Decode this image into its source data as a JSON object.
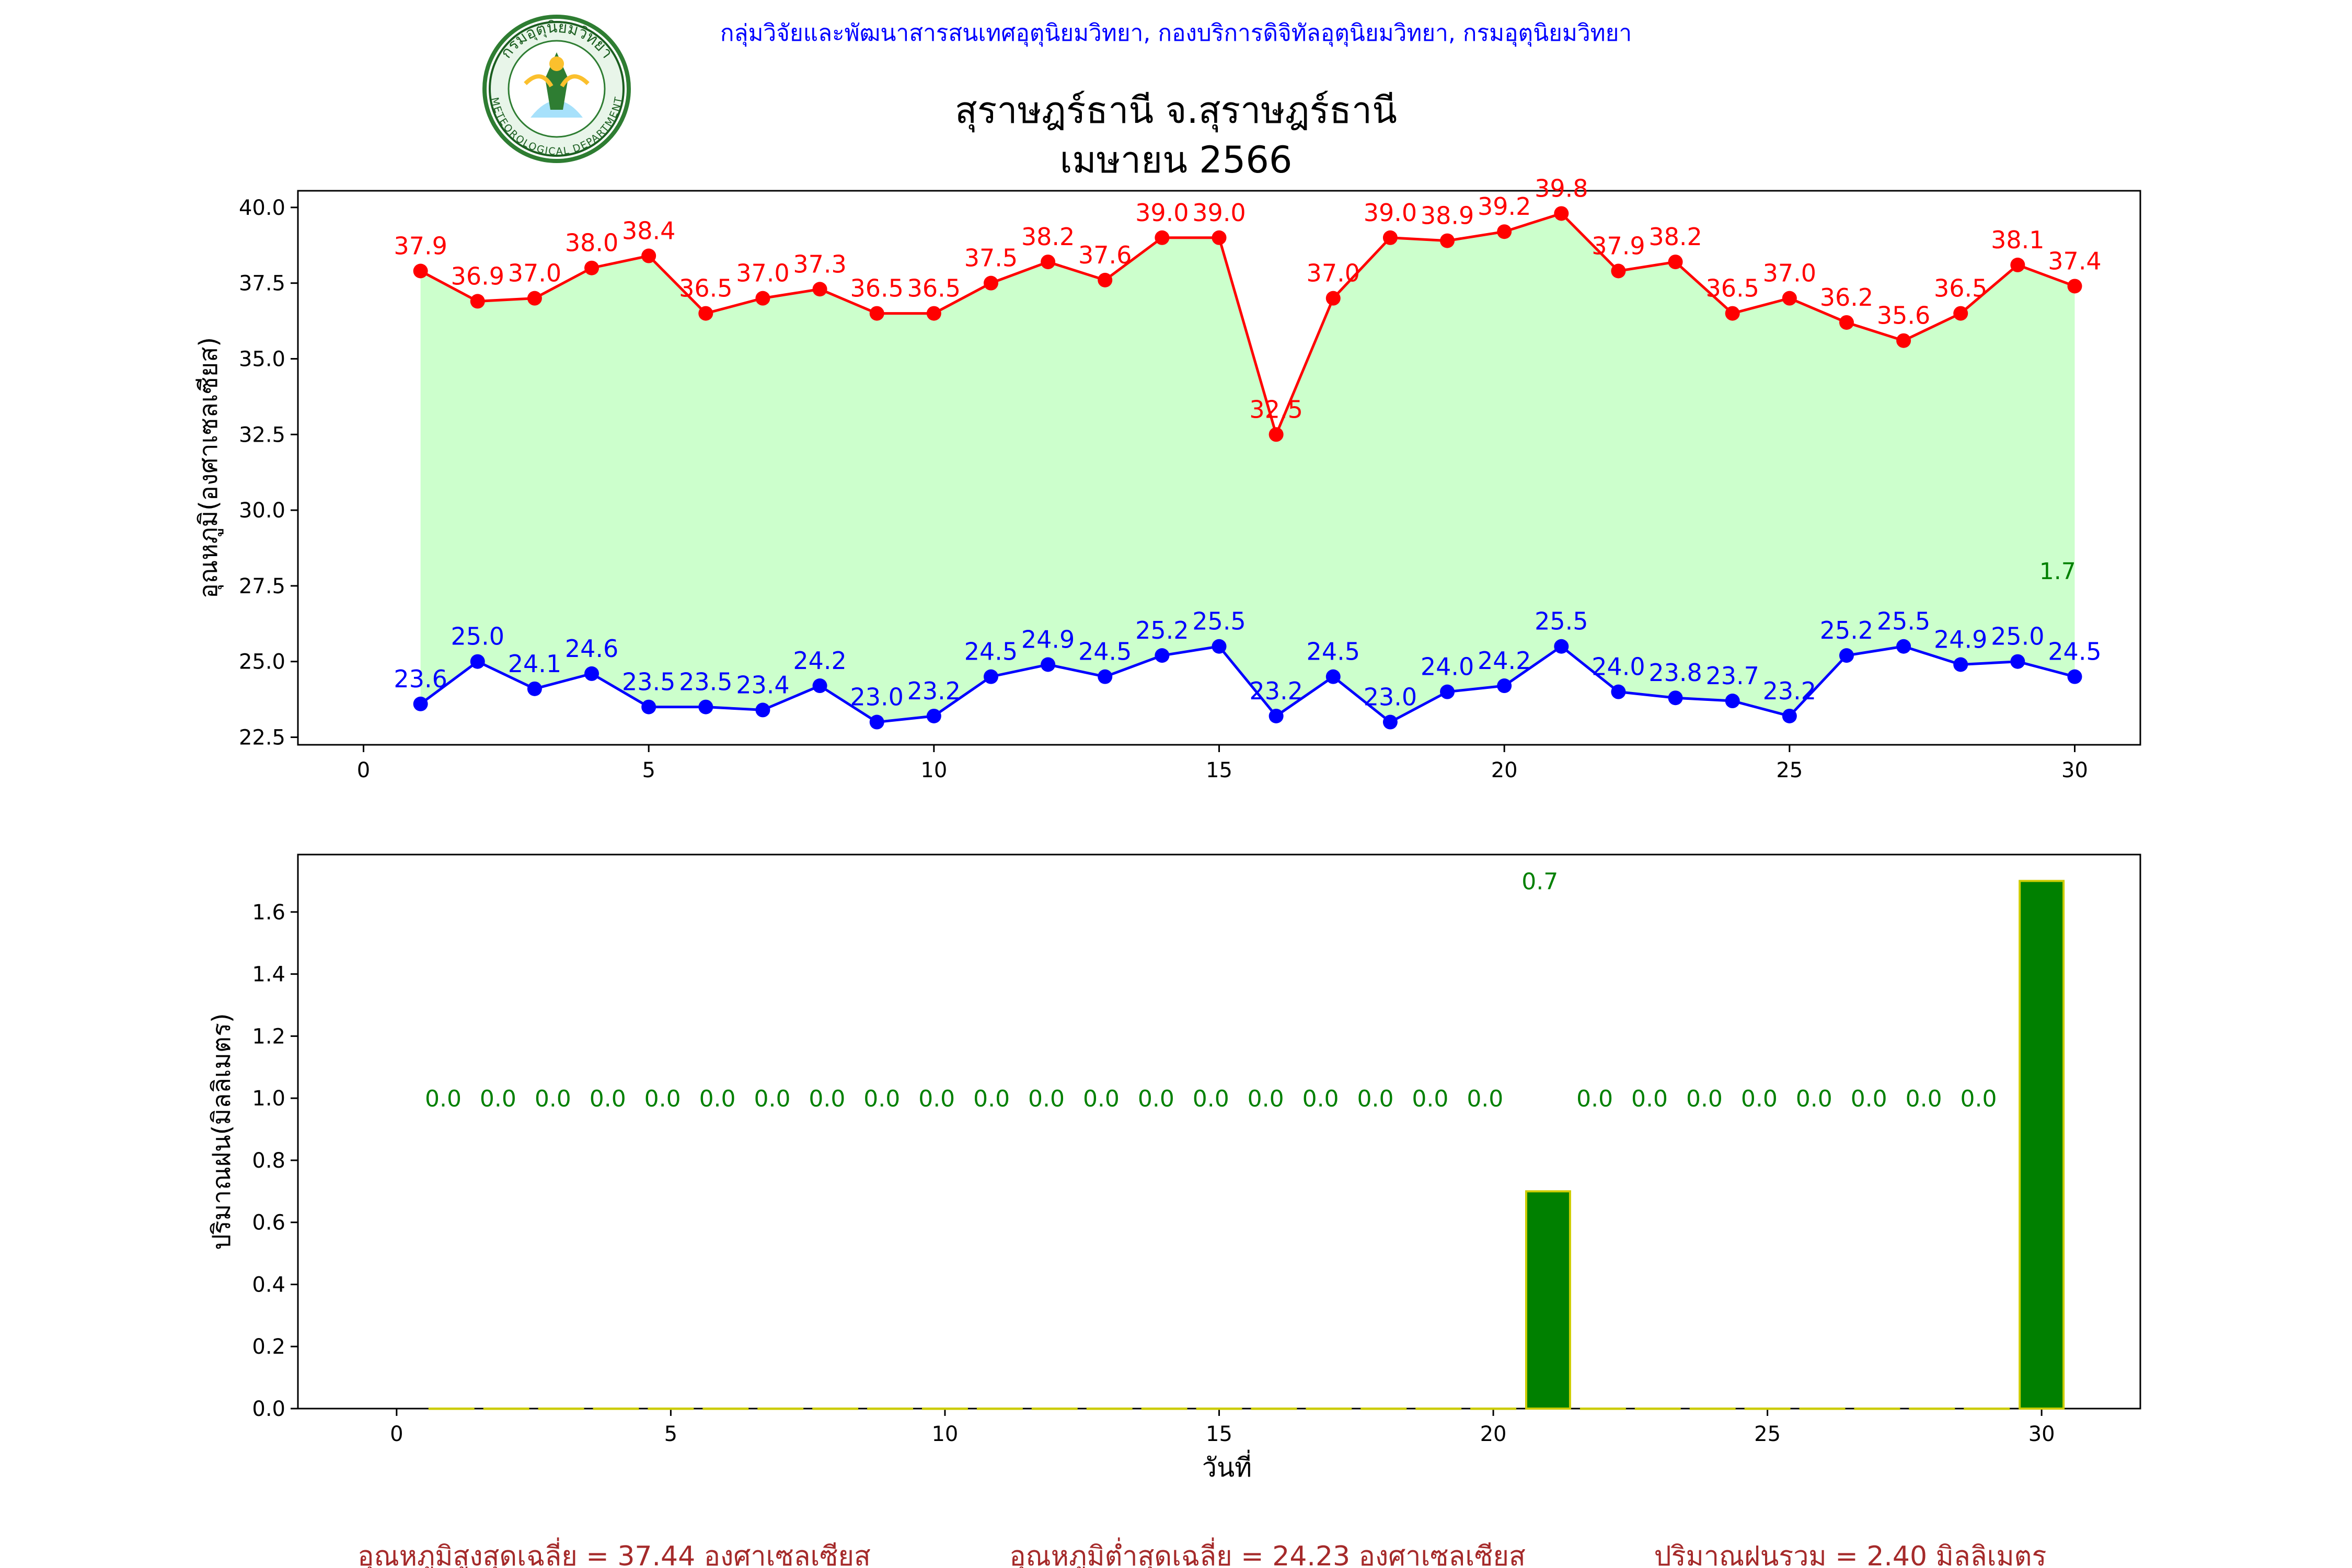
{
  "header": {
    "org_line": "กลุ่มวิจัยและพัฒนาสารสนเทศอุตุนิยมวิทยา, กองบริการดิจิทัลอุตุนิยมวิทยา, กรมอุตุนิยมวิทยา",
    "title": "สุราษฎร์ธานี จ.สุราษฎร์ธานี",
    "subtitle": "เมษายน 2566",
    "logo_top_text": "กรมอุตุนิยมวิทยา",
    "logo_bottom_text": "METEOROLOGICAL DEPARTMENT"
  },
  "colors": {
    "max_temp": "#ff0000",
    "min_temp": "#0000ff",
    "fill": "#ccffcc",
    "rain_bar": "#008000",
    "rain_edge": "#cccc00",
    "rain_label": "#008000",
    "footer": "#a52a2a",
    "org_line": "#0000ff"
  },
  "chart_data": [
    {
      "type": "line",
      "ylabel": "อุณหภูมิ(องศาเซลเซียส)",
      "xlim": [
        -1.15,
        31.15
      ],
      "ylim": [
        22.25,
        40.55
      ],
      "xticks": [
        0,
        5,
        10,
        15,
        20,
        25,
        30
      ],
      "yticks": [
        "22.5",
        "25.0",
        "27.5",
        "30.0",
        "32.5",
        "35.0",
        "37.5",
        "40.0"
      ],
      "x": [
        1,
        2,
        3,
        4,
        5,
        6,
        7,
        8,
        9,
        10,
        11,
        12,
        13,
        14,
        15,
        16,
        17,
        18,
        19,
        20,
        21,
        22,
        23,
        24,
        25,
        26,
        27,
        28,
        29,
        30
      ],
      "series": [
        {
          "key": "max",
          "values": [
            37.9,
            36.9,
            37.0,
            38.0,
            38.4,
            36.5,
            37.0,
            37.3,
            36.5,
            36.5,
            37.5,
            38.2,
            37.6,
            39.0,
            39.0,
            32.5,
            37.0,
            39.0,
            38.9,
            39.2,
            39.8,
            37.9,
            38.2,
            36.5,
            37.0,
            36.2,
            35.6,
            36.5,
            38.1,
            37.4
          ]
        },
        {
          "key": "min",
          "values": [
            23.6,
            25.0,
            24.1,
            24.6,
            23.5,
            23.5,
            23.4,
            24.2,
            23.0,
            23.2,
            24.5,
            24.9,
            24.5,
            25.2,
            25.5,
            23.2,
            24.5,
            23.0,
            24.0,
            24.2,
            25.5,
            24.0,
            23.8,
            23.7,
            23.2,
            25.2,
            25.5,
            24.9,
            25.0,
            24.5
          ]
        }
      ],
      "annotations": [
        {
          "text": "1.7",
          "x": 29.7,
          "y": 28.0
        }
      ]
    },
    {
      "type": "bar",
      "xlabel": "วันที่",
      "ylabel": "ปริมาณฝน(มิลลิเมตร)",
      "xlim": [
        -1.8,
        31.8
      ],
      "ylim": [
        0,
        1.785
      ],
      "xticks": [
        0,
        5,
        10,
        15,
        20,
        25,
        30
      ],
      "yticks": [
        "0.0",
        "0.2",
        "0.4",
        "0.6",
        "0.8",
        "1.0",
        "1.2",
        "1.4",
        "1.6"
      ],
      "x": [
        1,
        2,
        3,
        4,
        5,
        6,
        7,
        8,
        9,
        10,
        11,
        12,
        13,
        14,
        15,
        16,
        17,
        18,
        19,
        20,
        21,
        22,
        23,
        24,
        25,
        26,
        27,
        28,
        29,
        30
      ],
      "values": [
        0,
        0,
        0,
        0,
        0,
        0,
        0,
        0,
        0,
        0,
        0,
        0,
        0,
        0,
        0,
        0,
        0,
        0,
        0,
        0,
        0.7,
        0,
        0,
        0,
        0,
        0,
        0,
        0,
        0,
        1.7
      ],
      "labels": [
        {
          "text": "0.0",
          "x": 0.85,
          "y": 1.0
        },
        {
          "text": "0.0",
          "x": 1.85,
          "y": 1.0
        },
        {
          "text": "0.0",
          "x": 2.85,
          "y": 1.0
        },
        {
          "text": "0.0",
          "x": 3.85,
          "y": 1.0
        },
        {
          "text": "0.0",
          "x": 4.85,
          "y": 1.0
        },
        {
          "text": "0.0",
          "x": 5.85,
          "y": 1.0
        },
        {
          "text": "0.0",
          "x": 6.85,
          "y": 1.0
        },
        {
          "text": "0.0",
          "x": 7.85,
          "y": 1.0
        },
        {
          "text": "0.0",
          "x": 8.85,
          "y": 1.0
        },
        {
          "text": "0.0",
          "x": 9.85,
          "y": 1.0
        },
        {
          "text": "0.0",
          "x": 10.85,
          "y": 1.0
        },
        {
          "text": "0.0",
          "x": 11.85,
          "y": 1.0
        },
        {
          "text": "0.0",
          "x": 12.85,
          "y": 1.0
        },
        {
          "text": "0.0",
          "x": 13.85,
          "y": 1.0
        },
        {
          "text": "0.0",
          "x": 14.85,
          "y": 1.0
        },
        {
          "text": "0.0",
          "x": 15.85,
          "y": 1.0
        },
        {
          "text": "0.0",
          "x": 16.85,
          "y": 1.0
        },
        {
          "text": "0.0",
          "x": 17.85,
          "y": 1.0
        },
        {
          "text": "0.0",
          "x": 18.85,
          "y": 1.0
        },
        {
          "text": "0.0",
          "x": 19.85,
          "y": 1.0
        },
        {
          "text": "0.7",
          "x": 20.85,
          "y": 1.7
        },
        {
          "text": "0.0",
          "x": 21.85,
          "y": 1.0
        },
        {
          "text": "0.0",
          "x": 22.85,
          "y": 1.0
        },
        {
          "text": "0.0",
          "x": 23.85,
          "y": 1.0
        },
        {
          "text": "0.0",
          "x": 24.85,
          "y": 1.0
        },
        {
          "text": "0.0",
          "x": 25.85,
          "y": 1.0
        },
        {
          "text": "0.0",
          "x": 26.85,
          "y": 1.0
        },
        {
          "text": "0.0",
          "x": 27.85,
          "y": 1.0
        },
        {
          "text": "0.0",
          "x": 28.85,
          "y": 1.0
        }
      ]
    }
  ],
  "footer": {
    "avg_max": "อุณหภูมิสูงสุดเฉลี่ย = 37.44 องศาเซลเซียส",
    "avg_min": "อุณหภูมิต่ำสุดเฉลี่ย = 24.23 องศาเซลเซียส",
    "total_rain": "ปริมาณฝนรวม = 2.40 มิลลิเมตร"
  }
}
